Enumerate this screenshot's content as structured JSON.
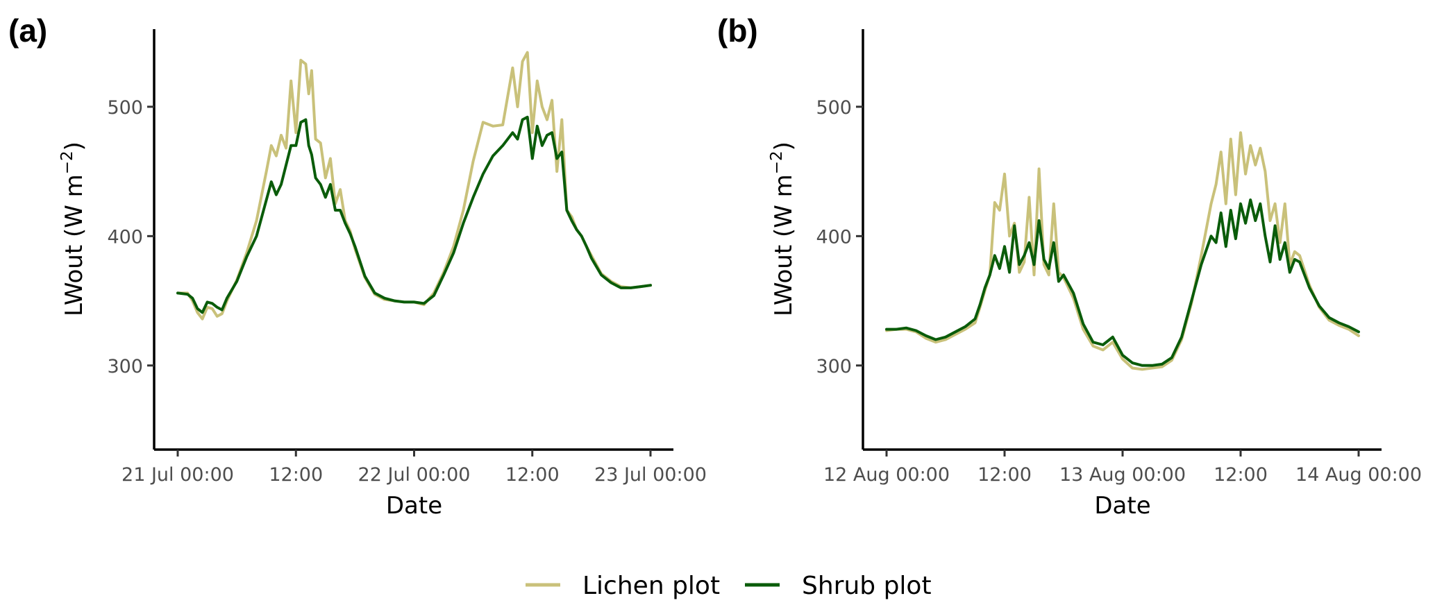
{
  "colors": {
    "lichen": "#c9c17a",
    "shrub": "#0a5c0a"
  },
  "legend": [
    {
      "label": "Lichen plot",
      "color_key": "lichen"
    },
    {
      "label": "Shrub plot",
      "color_key": "shrub"
    }
  ],
  "chart_data": [
    {
      "type": "line",
      "panel_label": "(a)",
      "xlabel": "Date",
      "ylabel": "LWout (W m⁻²)",
      "ylabel_main": "LWout (W m",
      "ylabel_sup": "−2",
      "ylabel_close": ")",
      "x_unit": "hours since 21 Jul 00:00",
      "xlim": [
        0,
        48
      ],
      "ylim": [
        235,
        560
      ],
      "xticks": [
        0,
        12,
        24,
        36,
        48
      ],
      "xtick_labels": [
        "21 Jul 00:00",
        "12:00",
        "22 Jul 00:00",
        "12:00",
        "23 Jul 00:00"
      ],
      "yticks": [
        300,
        400,
        500
      ],
      "ytick_labels": [
        "300",
        "400",
        "500"
      ],
      "grid": false,
      "legend_position": "bottom",
      "series": [
        {
          "name": "Lichen plot",
          "color_key": "lichen",
          "x": [
            0,
            1,
            1.5,
            2,
            2.5,
            3,
            3.5,
            4,
            4.5,
            5,
            6,
            7,
            8,
            9,
            9.5,
            10,
            10.5,
            11,
            11.5,
            12,
            12.5,
            13,
            13.3,
            13.6,
            14,
            14.5,
            15,
            15.5,
            16,
            16.5,
            17,
            17.5,
            18,
            19,
            20,
            21,
            22,
            23,
            24,
            25,
            26,
            27,
            28,
            29,
            30,
            31,
            32,
            33,
            34,
            34.5,
            35,
            35.5,
            36,
            36.5,
            37,
            37.5,
            38,
            38.5,
            39,
            39.5,
            40,
            40.5,
            41,
            41.5,
            42,
            43,
            44,
            45,
            46,
            47,
            48
          ],
          "y": [
            356,
            356,
            350,
            341,
            336,
            345,
            344,
            338,
            340,
            350,
            366,
            387,
            412,
            450,
            470,
            462,
            478,
            468,
            520,
            480,
            536,
            533,
            510,
            528,
            475,
            472,
            445,
            460,
            425,
            436,
            412,
            404,
            390,
            368,
            355,
            351,
            350,
            349,
            349,
            347,
            356,
            372,
            392,
            420,
            458,
            488,
            485,
            486,
            530,
            500,
            535,
            542,
            480,
            520,
            500,
            490,
            505,
            450,
            490,
            420,
            415,
            405,
            400,
            392,
            385,
            371,
            365,
            361,
            360,
            361,
            362
          ]
        },
        {
          "name": "Shrub plot",
          "color_key": "shrub",
          "x": [
            0,
            1,
            1.5,
            2,
            2.5,
            3,
            3.5,
            4,
            4.5,
            5,
            6,
            7,
            8,
            9,
            9.5,
            10,
            10.5,
            11,
            11.5,
            12,
            12.5,
            13,
            13.3,
            13.6,
            14,
            14.5,
            15,
            15.5,
            16,
            16.5,
            17,
            17.5,
            18,
            19,
            20,
            21,
            22,
            23,
            24,
            25,
            26,
            27,
            28,
            29,
            30,
            31,
            32,
            33,
            34,
            34.5,
            35,
            35.5,
            36,
            36.5,
            37,
            37.5,
            38,
            38.5,
            39,
            39.5,
            40,
            40.5,
            41,
            41.5,
            42,
            43,
            44,
            45,
            46,
            47,
            48
          ],
          "y": [
            356,
            355,
            352,
            344,
            341,
            349,
            348,
            345,
            343,
            352,
            365,
            384,
            400,
            428,
            442,
            432,
            440,
            455,
            470,
            470,
            488,
            490,
            470,
            463,
            445,
            440,
            430,
            440,
            420,
            420,
            410,
            402,
            392,
            369,
            356,
            352,
            350,
            349,
            349,
            348,
            354,
            370,
            387,
            410,
            430,
            448,
            462,
            470,
            480,
            475,
            490,
            492,
            460,
            485,
            470,
            478,
            480,
            460,
            465,
            420,
            412,
            405,
            400,
            392,
            383,
            370,
            364,
            360,
            360,
            361,
            362
          ]
        }
      ]
    },
    {
      "type": "line",
      "panel_label": "(b)",
      "xlabel": "Date",
      "ylabel": "LWout (W m⁻²)",
      "ylabel_main": "LWout (W m",
      "ylabel_sup": "−2",
      "ylabel_close": ")",
      "x_unit": "hours since 12 Aug 00:00",
      "xlim": [
        0,
        48
      ],
      "ylim": [
        235,
        560
      ],
      "xticks": [
        0,
        12,
        24,
        36,
        48
      ],
      "xtick_labels": [
        "12 Aug 00:00",
        "12:00",
        "13 Aug 00:00",
        "12:00",
        "14 Aug 00:00"
      ],
      "yticks": [
        300,
        400,
        500
      ],
      "ytick_labels": [
        "300",
        "400",
        "500"
      ],
      "grid": false,
      "legend_position": "bottom",
      "series": [
        {
          "name": "Lichen plot",
          "color_key": "lichen",
          "x": [
            0,
            1,
            2,
            3,
            4,
            5,
            6,
            7,
            8,
            9,
            9.5,
            10,
            10.5,
            11,
            11.5,
            12,
            12.5,
            13,
            13.5,
            14,
            14.5,
            15,
            15.5,
            16,
            16.5,
            17,
            17.5,
            18,
            19,
            20,
            21,
            22,
            23,
            24,
            25,
            26,
            27,
            28,
            29,
            30,
            31,
            32,
            33,
            33.5,
            34,
            34.5,
            35,
            35.5,
            36,
            36.5,
            37,
            37.5,
            38,
            38.5,
            39,
            39.5,
            40,
            40.5,
            41,
            41.5,
            42,
            43,
            44,
            45,
            46,
            47,
            48
          ],
          "y": [
            327,
            328,
            328,
            326,
            321,
            318,
            320,
            324,
            328,
            333,
            345,
            358,
            370,
            426,
            420,
            448,
            400,
            410,
            372,
            380,
            430,
            370,
            452,
            378,
            370,
            425,
            372,
            368,
            352,
            328,
            315,
            312,
            318,
            305,
            298,
            297,
            298,
            299,
            304,
            320,
            348,
            385,
            425,
            440,
            465,
            425,
            475,
            432,
            480,
            448,
            470,
            455,
            468,
            450,
            412,
            425,
            395,
            425,
            378,
            388,
            385,
            362,
            345,
            335,
            331,
            328,
            323
          ]
        },
        {
          "name": "Shrub plot",
          "color_key": "shrub",
          "x": [
            0,
            1,
            2,
            3,
            4,
            5,
            6,
            7,
            8,
            9,
            9.5,
            10,
            10.5,
            11,
            11.5,
            12,
            12.5,
            13,
            13.5,
            14,
            14.5,
            15,
            15.5,
            16,
            16.5,
            17,
            17.5,
            18,
            19,
            20,
            21,
            22,
            23,
            24,
            25,
            26,
            27,
            28,
            29,
            30,
            31,
            32,
            33,
            33.5,
            34,
            34.5,
            35,
            35.5,
            36,
            36.5,
            37,
            37.5,
            38,
            38.5,
            39,
            39.5,
            40,
            40.5,
            41,
            41.5,
            42,
            43,
            44,
            45,
            46,
            47,
            48
          ],
          "y": [
            328,
            328,
            329,
            327,
            323,
            320,
            322,
            326,
            330,
            336,
            347,
            360,
            370,
            385,
            375,
            392,
            372,
            408,
            378,
            385,
            395,
            378,
            412,
            382,
            375,
            395,
            365,
            370,
            356,
            332,
            318,
            316,
            322,
            308,
            302,
            300,
            300,
            301,
            306,
            322,
            350,
            378,
            400,
            395,
            418,
            392,
            420,
            398,
            425,
            410,
            428,
            412,
            425,
            400,
            380,
            408,
            382,
            395,
            372,
            382,
            380,
            360,
            346,
            337,
            333,
            330,
            326
          ]
        }
      ]
    }
  ]
}
